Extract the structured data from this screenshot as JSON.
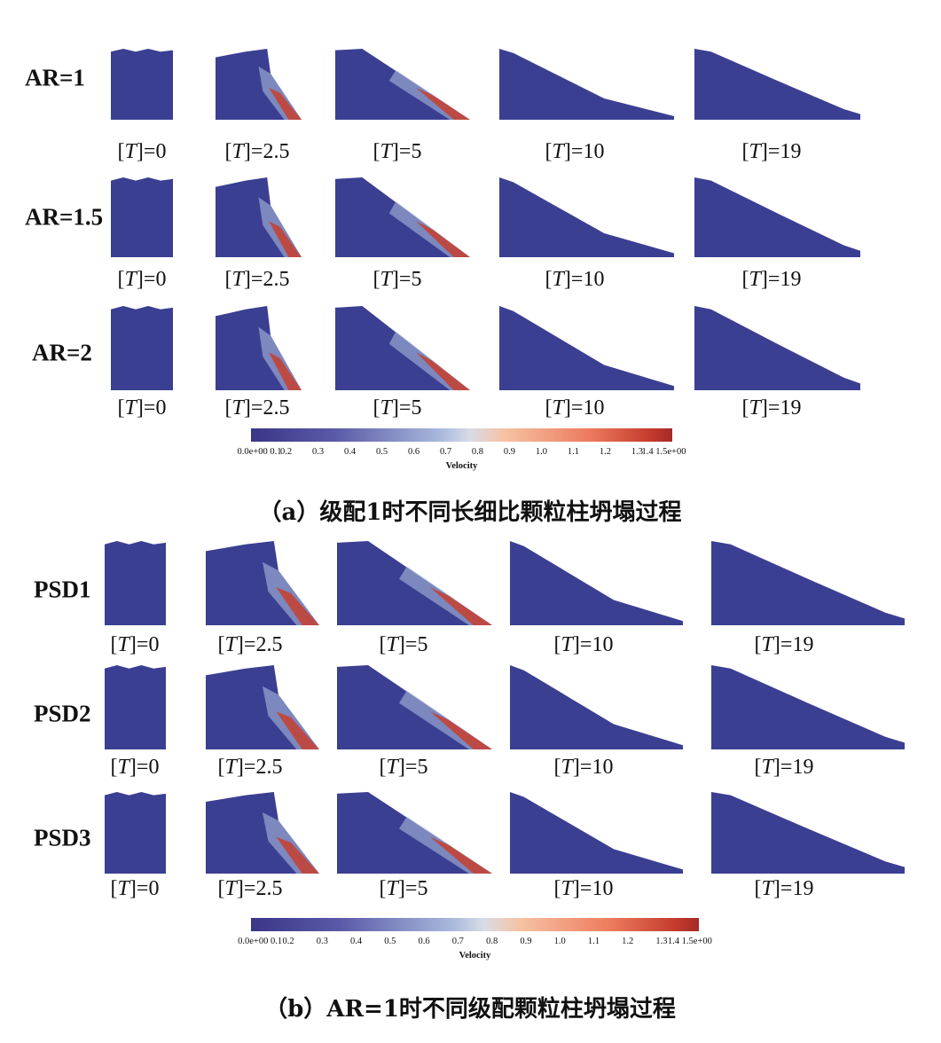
{
  "time_label": {
    "open": "[",
    "var": "T",
    "close": "]="
  },
  "times": [
    "0",
    "2.5",
    "5",
    "10",
    "19"
  ],
  "panel_a": {
    "rows": [
      {
        "label": "AR=1"
      },
      {
        "label": "AR=1.5"
      },
      {
        "label": "AR=2"
      }
    ],
    "colorbar": {
      "ticks": [
        "0.0e+00 0.1",
        "0.2",
        "0.3",
        "0.4",
        "0.5",
        "0.6",
        "0.7",
        "0.8",
        "0.9",
        "1.0",
        "1.1",
        "1.2",
        "1.3",
        "1.4 1.5e+00"
      ],
      "title": "Velocity",
      "range": [
        0.0,
        1.5
      ]
    },
    "caption": "（a）级配1时不同长细比颗粒柱坍塌过程"
  },
  "panel_b": {
    "rows": [
      {
        "label": "PSD1"
      },
      {
        "label": "PSD2"
      },
      {
        "label": "PSD3"
      }
    ],
    "colorbar": {
      "ticks": [
        "0.0e+00 0.1",
        "0.2",
        "0.3",
        "0.4",
        "0.5",
        "0.6",
        "0.7",
        "0.8",
        "0.9",
        "1.0",
        "1.1",
        "1.2",
        "1.3",
        "1.4 1.5e+00"
      ],
      "title": "Velocity",
      "range": [
        0.0,
        1.5
      ]
    },
    "caption": "（b）AR=1时不同级配颗粒柱坍塌过程"
  },
  "colors": {
    "particle_base": "#3b3f92",
    "fast": "#c8402f",
    "mid": "#a9b9dc"
  }
}
